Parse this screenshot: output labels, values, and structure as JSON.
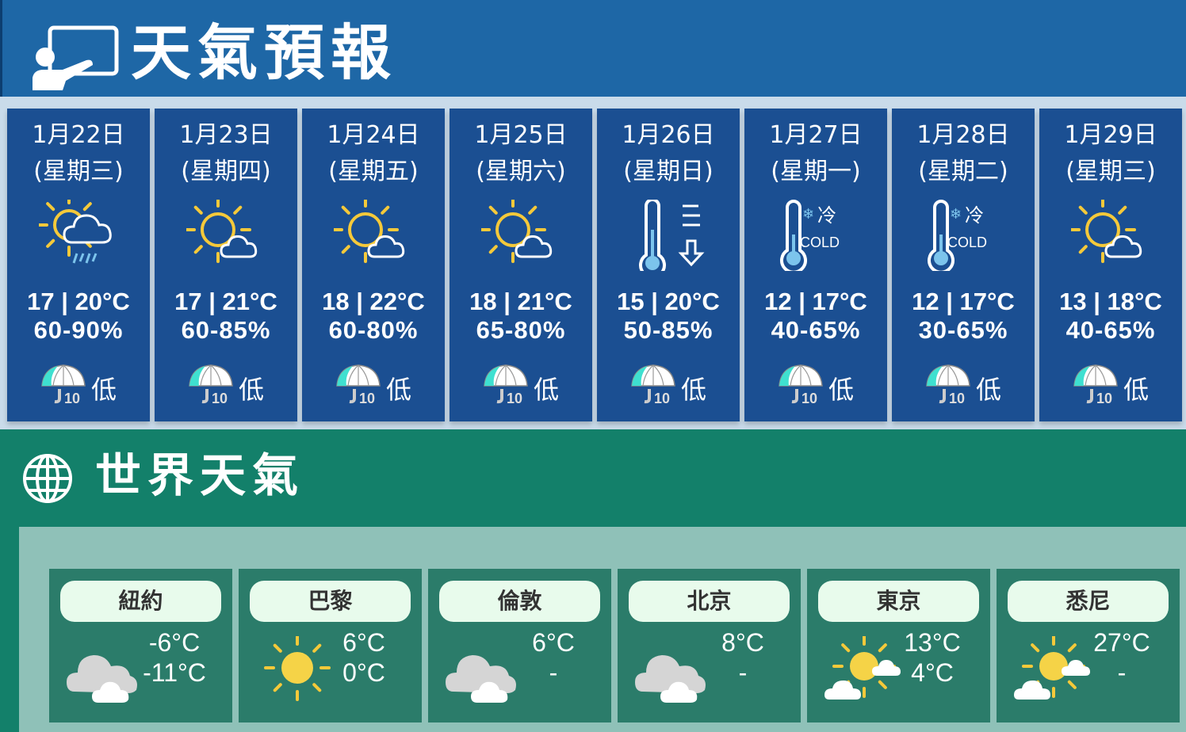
{
  "header": {
    "title": "天氣預報",
    "icon": "presenter-board-icon"
  },
  "forecast": [
    {
      "date": "1月22日",
      "weekday": "(星期三)",
      "icon": "sun-cloud-rain",
      "temp": "17 | 20°C",
      "humidity": "60-90%",
      "uv_icon": "umbrella-uv",
      "uv_level": "低"
    },
    {
      "date": "1月23日",
      "weekday": "(星期四)",
      "icon": "sun-cloud",
      "temp": "17 | 21°C",
      "humidity": "60-85%",
      "uv_icon": "umbrella-uv",
      "uv_level": "低"
    },
    {
      "date": "1月24日",
      "weekday": "(星期五)",
      "icon": "sun-cloud",
      "temp": "18 | 22°C",
      "humidity": "60-80%",
      "uv_icon": "umbrella-uv",
      "uv_level": "低"
    },
    {
      "date": "1月25日",
      "weekday": "(星期六)",
      "icon": "sun-cloud",
      "temp": "18 | 21°C",
      "humidity": "65-80%",
      "uv_icon": "umbrella-uv",
      "uv_level": "低"
    },
    {
      "date": "1月26日",
      "weekday": "(星期日)",
      "icon": "thermometer-down",
      "temp": "15 | 20°C",
      "humidity": "50-85%",
      "uv_icon": "umbrella-uv",
      "uv_level": "低"
    },
    {
      "date": "1月27日",
      "weekday": "(星期一)",
      "icon": "thermometer-cold",
      "temp": "12 | 17°C",
      "humidity": "40-65%",
      "uv_icon": "umbrella-uv",
      "uv_level": "低"
    },
    {
      "date": "1月28日",
      "weekday": "(星期二)",
      "icon": "thermometer-cold",
      "temp": "12 | 17°C",
      "humidity": "30-65%",
      "uv_icon": "umbrella-uv",
      "uv_level": "低"
    },
    {
      "date": "1月29日",
      "weekday": "(星期三)",
      "icon": "sun-cloud",
      "temp": "13 | 18°C",
      "humidity": "40-65%",
      "uv_icon": "umbrella-uv",
      "uv_level": "低"
    }
  ],
  "icon_text": {
    "cold_cn": "冷",
    "cold_en": "COLD",
    "uv_index": "10"
  },
  "world": {
    "title": "世界天氣",
    "icon": "globe-icon",
    "cities": [
      {
        "name": "紐約",
        "icon": "cloudy",
        "high": "-6°C",
        "low": "-11°C"
      },
      {
        "name": "巴黎",
        "icon": "sunny",
        "high": "6°C",
        "low": "0°C"
      },
      {
        "name": "倫敦",
        "icon": "cloudy",
        "high": "6°C",
        "low": "-"
      },
      {
        "name": "北京",
        "icon": "cloudy",
        "high": "8°C",
        "low": "-"
      },
      {
        "name": "東京",
        "icon": "sun-cloud",
        "high": "13°C",
        "low": "4°C"
      },
      {
        "name": "悉尼",
        "icon": "sun-cloud",
        "high": "27°C",
        "low": "-"
      }
    ]
  },
  "colors": {
    "header": "#1e67a6",
    "card": "#1b4f92",
    "green": "#13806a",
    "city_card": "#2b7c6a",
    "sun": "#f5c93a"
  }
}
